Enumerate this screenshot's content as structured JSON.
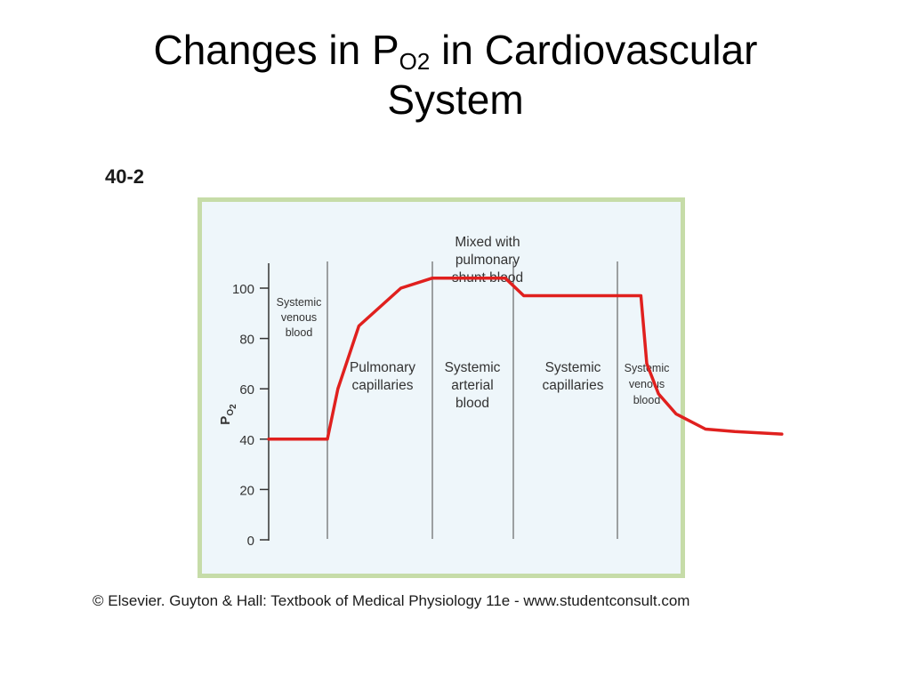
{
  "slide": {
    "title_main": "Changes in P",
    "title_sub": "O2",
    "title_rest": " in Cardiovascular",
    "title_line2": "System"
  },
  "figure_label": "40-2",
  "caption": "© Elsevier. Guyton & Hall: Textbook of Medical Physiology 11e - www.studentconsult.com",
  "colors": {
    "curve": "#e0201e",
    "panel_background": "#eef6fa",
    "panel_border": "#c6dca8",
    "axis": "#333333"
  },
  "chart_data": {
    "type": "line",
    "ylabel_main": "P",
    "ylabel_sub": "O",
    "ylabel_sub2": "2",
    "ylim": [
      0,
      100
    ],
    "yticks": [
      100,
      80,
      60,
      40,
      20,
      0
    ],
    "segments": [
      {
        "label": [
          "Systemic",
          "venous",
          "blood"
        ]
      },
      {
        "label": [
          "Pulmonary",
          "capillaries"
        ]
      },
      {
        "label": [
          "Systemic",
          "arterial",
          "blood"
        ]
      },
      {
        "label": [
          "Systemic",
          "capillaries"
        ]
      },
      {
        "label": [
          "Systemic",
          "venous",
          "blood"
        ]
      }
    ],
    "annotation": [
      "Mixed with",
      "pulmonary",
      "shunt blood"
    ],
    "series": [
      {
        "values": [
          {
            "x": 0.0,
            "y": 40
          },
          {
            "x": 1.0,
            "y": 40
          },
          {
            "x": 1.1,
            "y": 60
          },
          {
            "x": 1.3,
            "y": 85
          },
          {
            "x": 1.7,
            "y": 100
          },
          {
            "x": 2.0,
            "y": 104
          },
          {
            "x": 2.9,
            "y": 104
          },
          {
            "x": 3.1,
            "y": 97
          },
          {
            "x": 4.4,
            "y": 97
          },
          {
            "x": 4.5,
            "y": 70
          },
          {
            "x": 4.7,
            "y": 58
          },
          {
            "x": 5.0,
            "y": 50
          },
          {
            "x": 5.5,
            "y": 44
          },
          {
            "x": 6.0,
            "y": 43
          },
          {
            "x": 6.8,
            "y": 42
          }
        ]
      }
    ]
  }
}
